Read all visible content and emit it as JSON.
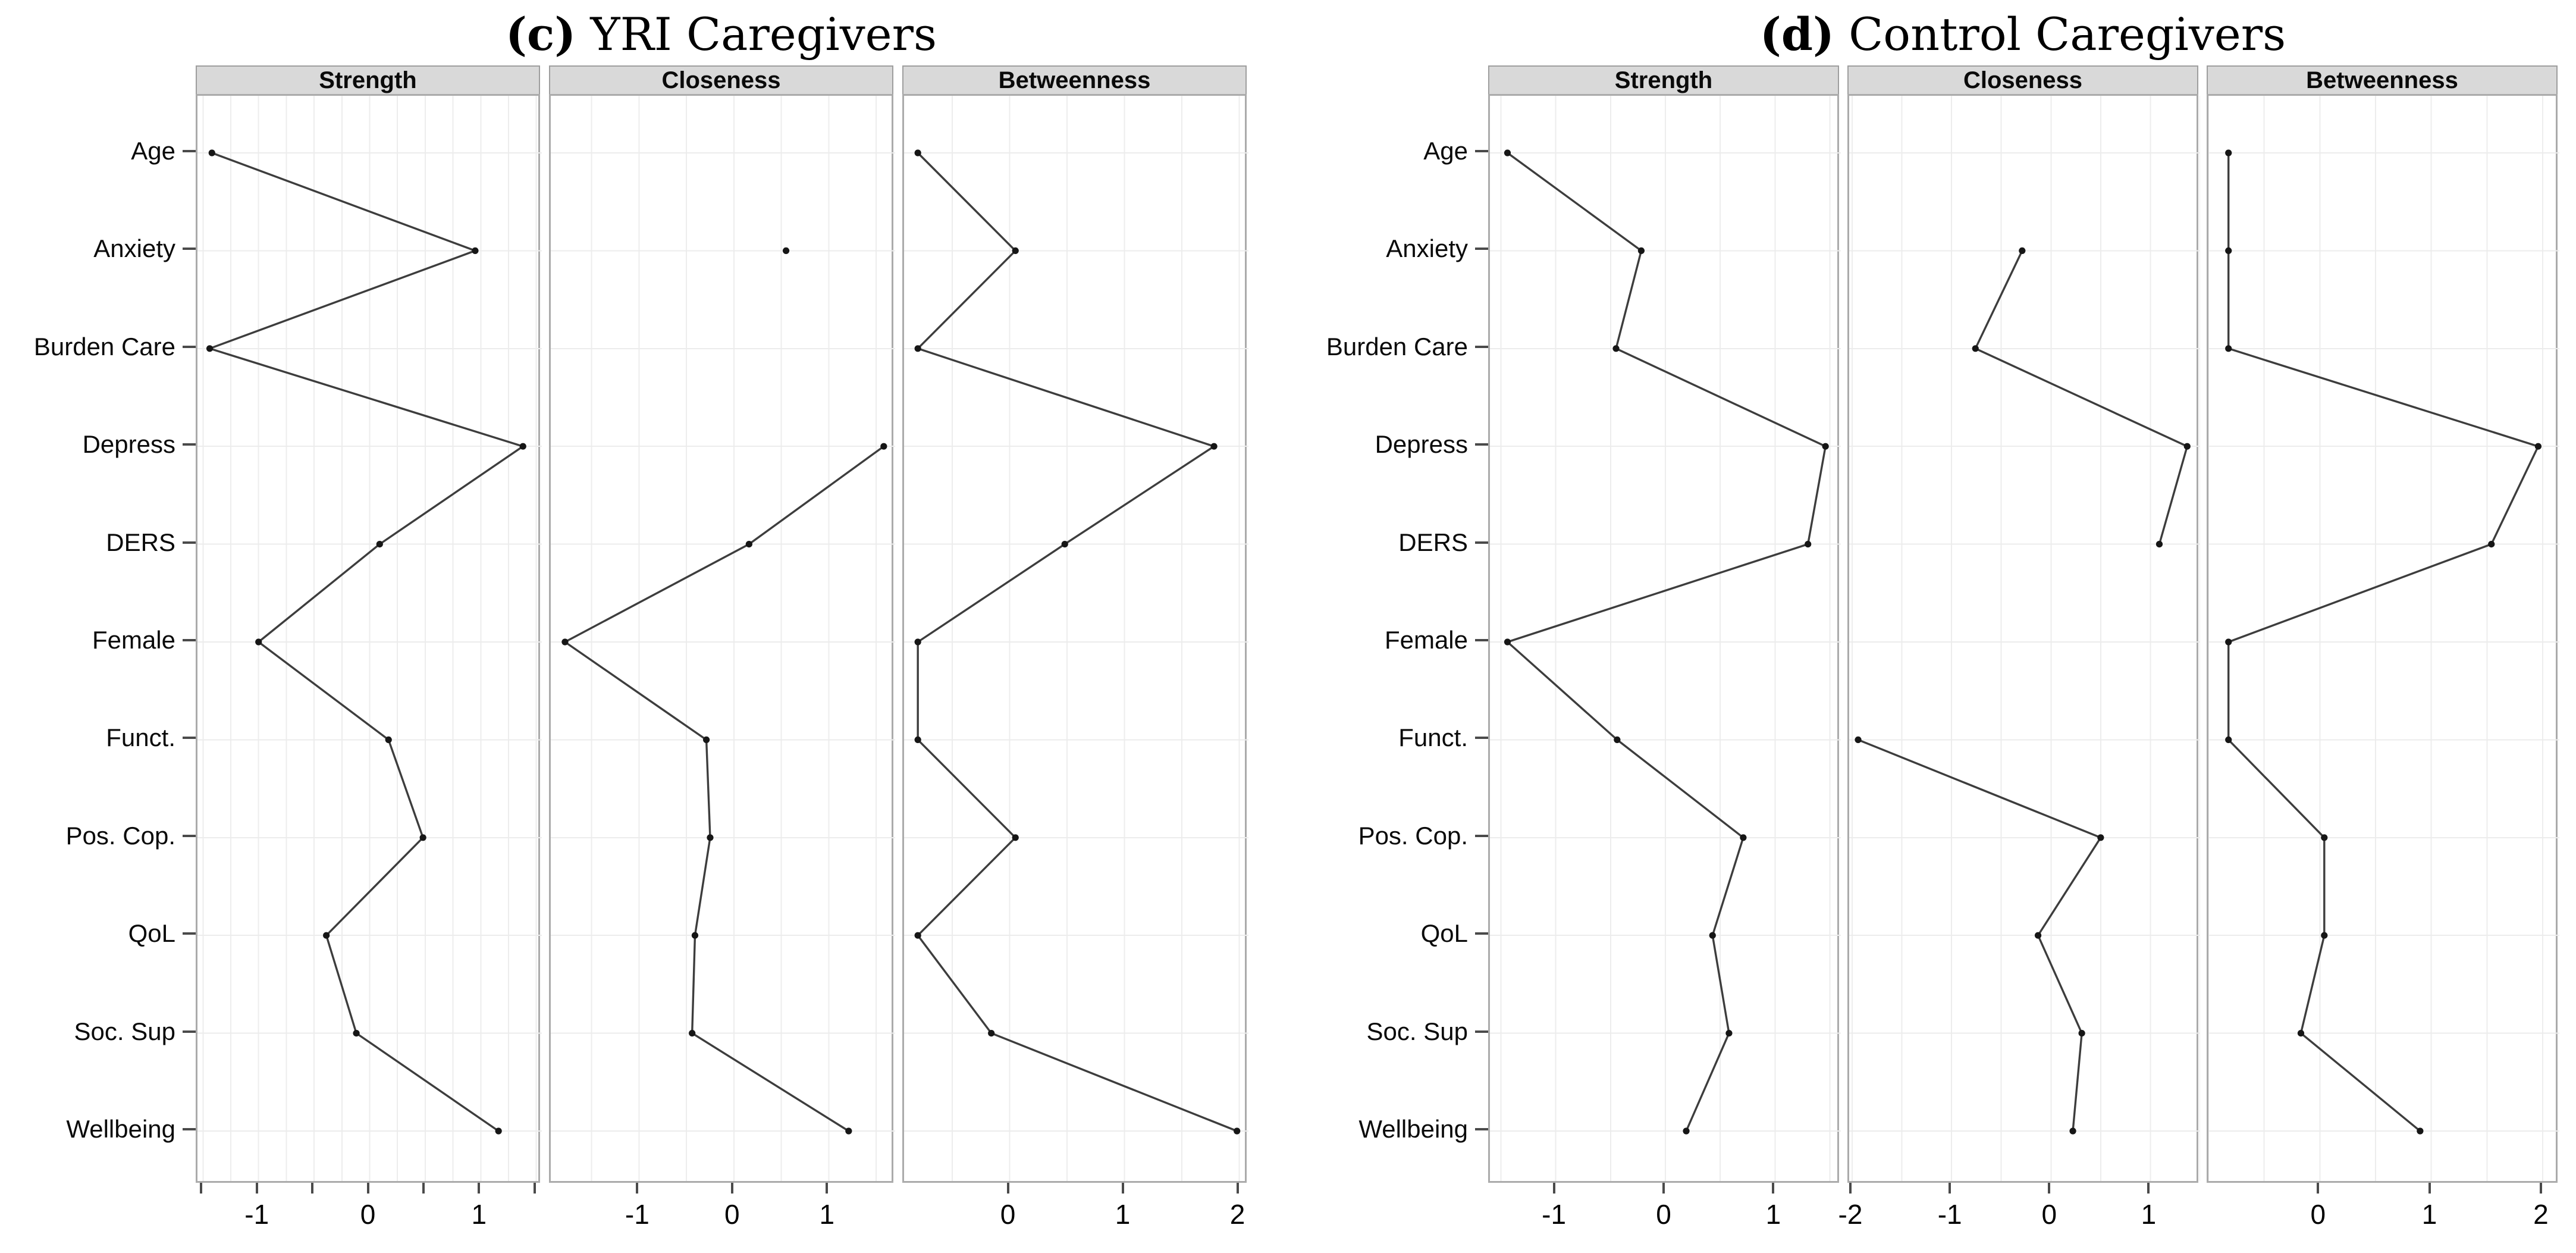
{
  "chart_data": {
    "type": "line",
    "orientation": "horizontal-dot-line",
    "description": "Network centrality indices (z-scores) per variable, shown as connected dot plots; gaps indicate variables without a value in that index",
    "categories": [
      "Age",
      "Anxiety",
      "Burden Care",
      "Depress",
      "DERS",
      "Female",
      "Funct.",
      "Pos. Cop.",
      "QoL",
      "Soc. Sup",
      "Wellbeing"
    ],
    "grid": true,
    "legend": "none",
    "figures": [
      {
        "marker": "(c)",
        "title": "YRI Caregivers",
        "panels": [
          {
            "name": "Strength",
            "xlim": [
              -1.55,
              1.55
            ],
            "ticks": [
              -1,
              0,
              1
            ],
            "minor_ticks": [
              -1.5,
              -0.5,
              0.5,
              1.5
            ],
            "grid_step": 0.25,
            "values": [
              -1.42,
              0.95,
              -1.44,
              1.38,
              0.09,
              -1.0,
              0.17,
              0.48,
              -0.39,
              -0.12,
              1.16
            ]
          },
          {
            "name": "Closeness",
            "xlim": [
              -1.93,
              1.7
            ],
            "ticks": [
              -1,
              0,
              1
            ],
            "minor_ticks": [],
            "grid_step": 0.5,
            "values": [
              null,
              0.55,
              null,
              1.58,
              0.16,
              -1.78,
              -0.29,
              -0.25,
              -0.41,
              -0.44,
              1.21
            ]
          },
          {
            "name": "Betweenness",
            "xlim": [
              -0.92,
              2.08
            ],
            "ticks": [
              0,
              1,
              2
            ],
            "minor_ticks": [],
            "grid_step": 0.5,
            "values": [
              -0.8,
              0.05,
              -0.8,
              1.78,
              0.48,
              -0.8,
              -0.8,
              0.05,
              -0.8,
              -0.16,
              1.98
            ]
          }
        ]
      },
      {
        "marker": "(d)",
        "title": "Control Caregivers",
        "panels": [
          {
            "name": "Strength",
            "xlim": [
              -1.6,
              1.6
            ],
            "ticks": [
              -1,
              0,
              1
            ],
            "minor_ticks": [],
            "grid_step": 0.5,
            "values": [
              -1.44,
              -0.22,
              -0.45,
              1.46,
              1.3,
              -1.44,
              -0.44,
              0.71,
              0.43,
              0.58,
              0.19
            ]
          },
          {
            "name": "Closeness",
            "xlim": [
              -2.03,
              1.5
            ],
            "ticks": [
              -2,
              -1,
              0,
              1
            ],
            "minor_ticks": [],
            "grid_step": 0.5,
            "values": [
              null,
              -0.29,
              -0.76,
              1.37,
              1.09,
              null,
              -1.94,
              0.5,
              -0.13,
              0.31,
              0.22
            ]
          },
          {
            "name": "Betweenness",
            "xlim": [
              -1.0,
              2.15
            ],
            "ticks": [
              0,
              1,
              2
            ],
            "minor_ticks": [],
            "grid_step": 0.5,
            "values": [
              -0.82,
              -0.82,
              -0.82,
              1.96,
              1.54,
              -0.82,
              -0.82,
              0.04,
              0.04,
              -0.17,
              0.9
            ]
          }
        ]
      }
    ]
  },
  "colors": {
    "background": "#ffffff",
    "panel_header_bg": "#d9d9d9",
    "panel_header_border": "#9e9e9e",
    "panel_border": "#ababab",
    "gridline": "#ededed",
    "line": "#3d3d3d",
    "point": "#161616",
    "tick": "#4a4a4a",
    "text": "#000000"
  }
}
